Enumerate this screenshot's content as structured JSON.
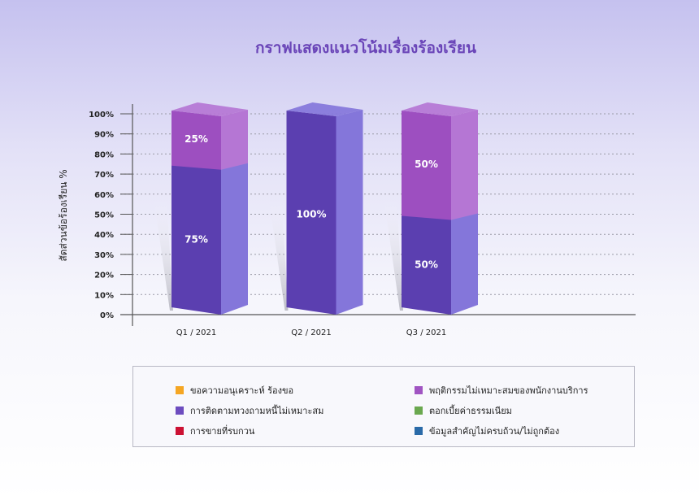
{
  "chart_data": {
    "type": "bar",
    "stacked": true,
    "style": "3d",
    "title": "กราฟแสดงแนวโน้มเรื่องร้องเรียน",
    "ylabel": "สัดส่วนข้อร้องเรียน %",
    "xlabel": "",
    "ylim": [
      0,
      100
    ],
    "yticks": [
      "0%",
      "10%",
      "20%",
      "30%",
      "40%",
      "50%",
      "60%",
      "70%",
      "80%",
      "90%",
      "100%"
    ],
    "grid": true,
    "categories": [
      "Q1 / 2021",
      "Q2 / 2021",
      "Q3 / 2021"
    ],
    "series": [
      {
        "name": "การติดตามทวงถามหนี้ไม่เหมาะสม",
        "color": "#5b3fb0",
        "side_color": "#8476da",
        "values": [
          75,
          100,
          50
        ],
        "labels": [
          "75%",
          "100%",
          "50%"
        ]
      },
      {
        "name": "พฤติกรรมไม่เหมาะสมของพนักงานบริการ",
        "color": "#9d4fc0",
        "side_color": "#b576d4",
        "values": [
          25,
          0,
          50
        ],
        "labels": [
          "25%",
          "",
          "50%"
        ]
      }
    ]
  },
  "legend": {
    "placement": "bottom",
    "items": [
      {
        "label": "ขอความอนุเคราะห์ ร้องขอ",
        "color": "#f5a623"
      },
      {
        "label": "พฤติกรรมไม่เหมาะสมของพนักงานบริการ",
        "color": "#a054c2"
      },
      {
        "label": "การติดตามทวงถามหนี้ไม่เหมาะสม",
        "color": "#6d4cbf"
      },
      {
        "label": "ตอกเบี้ยค่าธรรมเนียม",
        "color": "#6aa84f"
      },
      {
        "label": "การขายที่รบกวน",
        "color": "#cc1133"
      },
      {
        "label": "ข้อมูลสำคัญไม่ครบถ้วน/ไม่ถูกต้อง",
        "color": "#2a6aa8"
      }
    ]
  }
}
